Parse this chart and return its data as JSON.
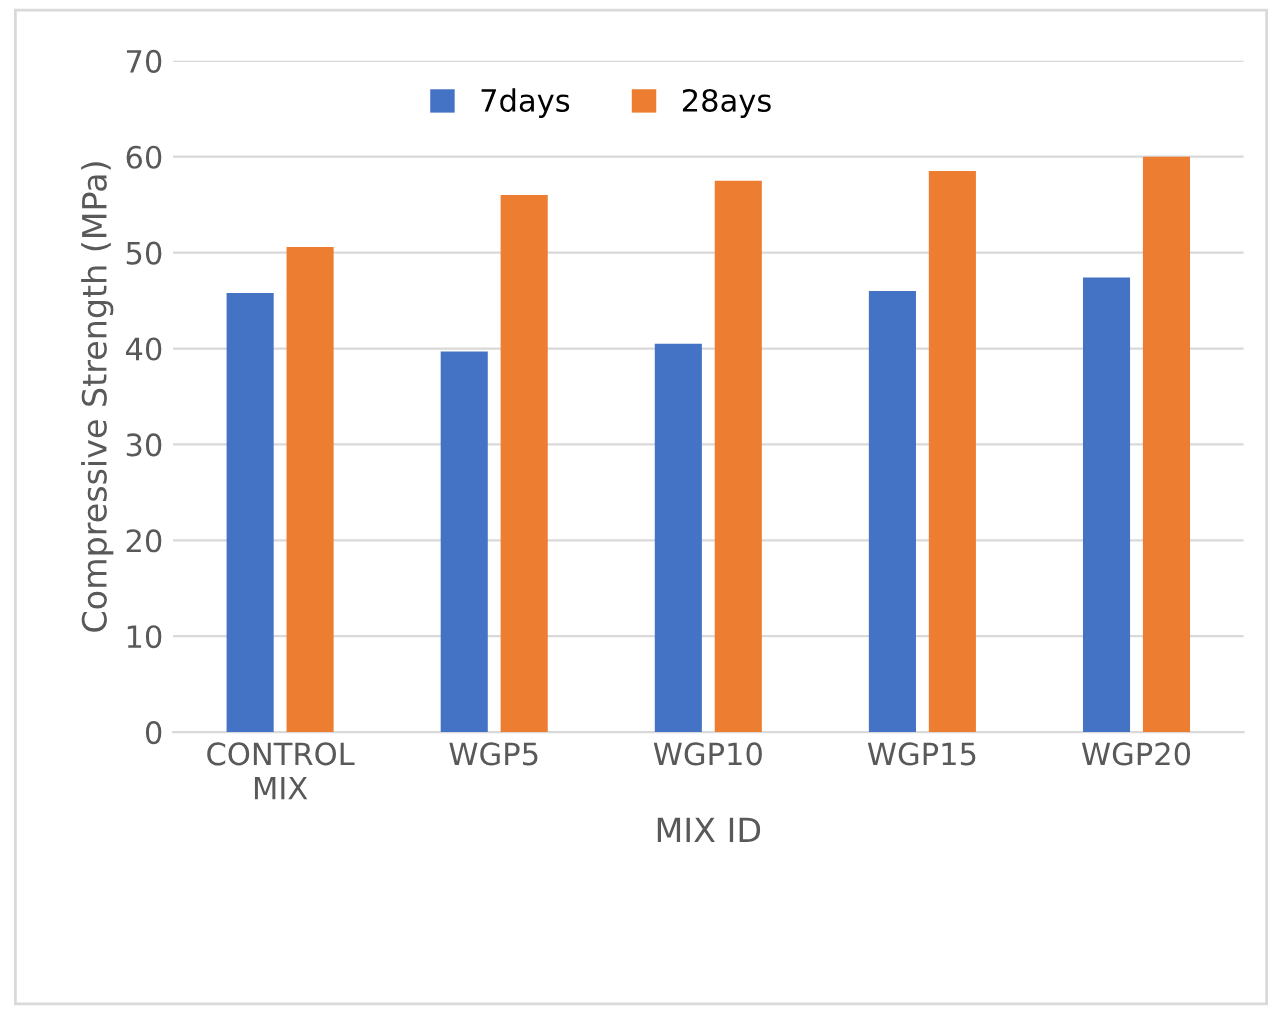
{
  "chart_data": {
    "type": "bar",
    "xlabel": "MIX ID",
    "ylabel": "Compressive Strength (MPa)",
    "categories": [
      "CONTROL\nMIX",
      "WGP5",
      "WGP10",
      "WGP15",
      "WGP20"
    ],
    "series": [
      {
        "name": "7days",
        "color": "#4472c4",
        "values": [
          45.8,
          39.7,
          40.5,
          46.0,
          47.4
        ]
      },
      {
        "name": "28ays",
        "color": "#ed7d31",
        "values": [
          50.6,
          56.0,
          57.5,
          58.5,
          60.0
        ]
      }
    ],
    "ylim": [
      0,
      70
    ],
    "yticks": [
      0,
      10,
      20,
      30,
      40,
      50,
      60,
      70
    ],
    "grid": "y",
    "legend": "top"
  }
}
